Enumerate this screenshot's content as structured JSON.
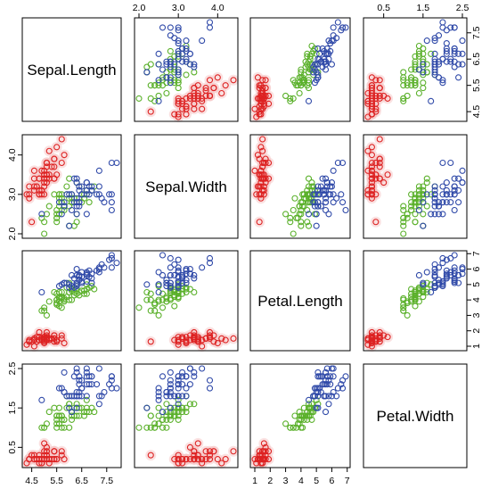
{
  "chart_data": {
    "type": "scatter",
    "subtype": "pairs-matrix",
    "variables": [
      "Sepal.Length",
      "Sepal.Width",
      "Petal.Length",
      "Petal.Width"
    ],
    "ranges": {
      "Sepal.Length": [
        4.3,
        7.9
      ],
      "Sepal.Width": [
        2.0,
        4.4
      ],
      "Petal.Length": [
        1.0,
        6.9
      ],
      "Petal.Width": [
        0.1,
        2.5
      ]
    },
    "ticks": {
      "Sepal.Length": [
        "4.5",
        "5.5",
        "6.5",
        "7.5"
      ],
      "Sepal.Width": [
        "2.0",
        "3.0",
        "4.0"
      ],
      "Petal.Length": [
        "1",
        "2",
        "3",
        "4",
        "5",
        "6",
        "7"
      ],
      "Petal.Width": [
        "0.5",
        "1.5",
        "2.5"
      ]
    },
    "groups": [
      {
        "color": "#dd2222",
        "halo": "#f6c9c9"
      },
      {
        "color": "#5ab02a",
        "halo": "none"
      },
      {
        "color": "#2f49a8",
        "halo": "none"
      }
    ],
    "points": [
      [
        [
          5.1,
          3.5,
          1.4,
          0.2
        ],
        [
          4.9,
          3.0,
          1.4,
          0.2
        ],
        [
          4.7,
          3.2,
          1.3,
          0.2
        ],
        [
          4.6,
          3.1,
          1.5,
          0.2
        ],
        [
          5.0,
          3.6,
          1.4,
          0.2
        ],
        [
          5.4,
          3.9,
          1.7,
          0.4
        ],
        [
          4.6,
          3.4,
          1.4,
          0.3
        ],
        [
          5.0,
          3.4,
          1.5,
          0.2
        ],
        [
          4.4,
          2.9,
          1.4,
          0.2
        ],
        [
          4.9,
          3.1,
          1.5,
          0.1
        ],
        [
          5.4,
          3.7,
          1.5,
          0.2
        ],
        [
          4.8,
          3.4,
          1.6,
          0.2
        ],
        [
          4.8,
          3.0,
          1.4,
          0.1
        ],
        [
          4.3,
          3.0,
          1.1,
          0.1
        ],
        [
          5.8,
          4.0,
          1.2,
          0.2
        ],
        [
          5.7,
          4.4,
          1.5,
          0.4
        ],
        [
          5.4,
          3.9,
          1.3,
          0.4
        ],
        [
          5.1,
          3.5,
          1.4,
          0.3
        ],
        [
          5.7,
          3.8,
          1.7,
          0.3
        ],
        [
          5.1,
          3.8,
          1.5,
          0.3
        ],
        [
          5.4,
          3.4,
          1.7,
          0.2
        ],
        [
          5.1,
          3.7,
          1.5,
          0.4
        ],
        [
          4.6,
          3.6,
          1.0,
          0.2
        ],
        [
          5.1,
          3.3,
          1.7,
          0.5
        ],
        [
          4.8,
          3.4,
          1.9,
          0.2
        ],
        [
          5.0,
          3.0,
          1.6,
          0.2
        ],
        [
          5.0,
          3.4,
          1.6,
          0.4
        ],
        [
          5.2,
          3.5,
          1.5,
          0.2
        ],
        [
          5.2,
          3.4,
          1.4,
          0.2
        ],
        [
          4.7,
          3.2,
          1.6,
          0.2
        ],
        [
          4.8,
          3.1,
          1.6,
          0.2
        ],
        [
          5.4,
          3.4,
          1.5,
          0.4
        ],
        [
          5.2,
          4.1,
          1.5,
          0.1
        ],
        [
          5.5,
          4.2,
          1.4,
          0.2
        ],
        [
          4.9,
          3.1,
          1.5,
          0.2
        ],
        [
          5.0,
          3.2,
          1.2,
          0.2
        ],
        [
          5.5,
          3.5,
          1.3,
          0.2
        ],
        [
          4.9,
          3.6,
          1.4,
          0.1
        ],
        [
          4.4,
          3.0,
          1.3,
          0.2
        ],
        [
          5.1,
          3.4,
          1.5,
          0.2
        ],
        [
          5.0,
          3.5,
          1.3,
          0.3
        ],
        [
          4.5,
          2.3,
          1.3,
          0.3
        ],
        [
          4.4,
          3.2,
          1.3,
          0.2
        ],
        [
          5.0,
          3.5,
          1.6,
          0.6
        ],
        [
          5.1,
          3.8,
          1.9,
          0.4
        ],
        [
          4.8,
          3.0,
          1.4,
          0.3
        ],
        [
          5.1,
          3.8,
          1.6,
          0.2
        ],
        [
          4.6,
          3.2,
          1.4,
          0.2
        ],
        [
          5.3,
          3.7,
          1.5,
          0.2
        ],
        [
          5.0,
          3.3,
          1.4,
          0.2
        ]
      ],
      [
        [
          7.0,
          3.2,
          4.7,
          1.4
        ],
        [
          6.4,
          3.2,
          4.5,
          1.5
        ],
        [
          6.9,
          3.1,
          4.9,
          1.5
        ],
        [
          5.5,
          2.3,
          4.0,
          1.3
        ],
        [
          6.5,
          2.8,
          4.6,
          1.5
        ],
        [
          5.7,
          2.8,
          4.5,
          1.3
        ],
        [
          6.3,
          3.3,
          4.7,
          1.6
        ],
        [
          4.9,
          2.4,
          3.3,
          1.0
        ],
        [
          6.6,
          2.9,
          4.6,
          1.3
        ],
        [
          5.2,
          2.7,
          3.9,
          1.4
        ],
        [
          5.0,
          2.0,
          3.5,
          1.0
        ],
        [
          5.9,
          3.0,
          4.2,
          1.5
        ],
        [
          6.0,
          2.2,
          4.0,
          1.0
        ],
        [
          6.1,
          2.9,
          4.7,
          1.4
        ],
        [
          5.6,
          2.9,
          3.6,
          1.3
        ],
        [
          6.7,
          3.1,
          4.4,
          1.4
        ],
        [
          5.6,
          3.0,
          4.5,
          1.5
        ],
        [
          5.8,
          2.7,
          4.1,
          1.0
        ],
        [
          6.2,
          2.2,
          4.5,
          1.5
        ],
        [
          5.6,
          2.5,
          3.9,
          1.1
        ],
        [
          5.9,
          3.2,
          4.8,
          1.8
        ],
        [
          6.1,
          2.8,
          4.0,
          1.3
        ],
        [
          6.3,
          2.5,
          4.9,
          1.5
        ],
        [
          6.1,
          2.8,
          4.7,
          1.2
        ],
        [
          6.4,
          2.9,
          4.3,
          1.3
        ],
        [
          6.6,
          3.0,
          4.4,
          1.4
        ],
        [
          6.8,
          2.8,
          4.8,
          1.4
        ],
        [
          6.7,
          3.0,
          5.0,
          1.7
        ],
        [
          6.0,
          2.9,
          4.5,
          1.5
        ],
        [
          5.7,
          2.6,
          3.5,
          1.0
        ],
        [
          5.5,
          2.4,
          3.8,
          1.1
        ],
        [
          5.5,
          2.4,
          3.7,
          1.0
        ],
        [
          5.8,
          2.7,
          3.9,
          1.2
        ],
        [
          6.0,
          2.7,
          5.1,
          1.6
        ],
        [
          5.4,
          3.0,
          4.5,
          1.5
        ],
        [
          6.0,
          3.4,
          4.5,
          1.6
        ],
        [
          6.7,
          3.1,
          4.7,
          1.5
        ],
        [
          6.3,
          2.3,
          4.4,
          1.3
        ],
        [
          5.6,
          3.0,
          4.1,
          1.3
        ],
        [
          5.5,
          2.5,
          4.0,
          1.3
        ],
        [
          5.5,
          2.6,
          4.4,
          1.2
        ],
        [
          6.1,
          3.0,
          4.6,
          1.4
        ],
        [
          5.8,
          2.6,
          4.0,
          1.2
        ],
        [
          5.0,
          2.3,
          3.3,
          1.0
        ],
        [
          5.6,
          2.7,
          4.2,
          1.3
        ],
        [
          5.7,
          3.0,
          4.2,
          1.2
        ],
        [
          5.7,
          2.9,
          4.2,
          1.3
        ],
        [
          6.2,
          2.9,
          4.3,
          1.3
        ],
        [
          5.1,
          2.5,
          3.0,
          1.1
        ],
        [
          5.7,
          2.8,
          4.1,
          1.3
        ]
      ],
      [
        [
          6.3,
          3.3,
          6.0,
          2.5
        ],
        [
          5.8,
          2.7,
          5.1,
          1.9
        ],
        [
          7.1,
          3.0,
          5.9,
          2.1
        ],
        [
          6.3,
          2.9,
          5.6,
          1.8
        ],
        [
          6.5,
          3.0,
          5.8,
          2.2
        ],
        [
          7.6,
          3.0,
          6.6,
          2.1
        ],
        [
          4.9,
          2.5,
          4.5,
          1.7
        ],
        [
          7.3,
          2.9,
          6.3,
          1.8
        ],
        [
          6.7,
          2.5,
          5.8,
          1.8
        ],
        [
          7.2,
          3.6,
          6.1,
          2.5
        ],
        [
          6.5,
          3.2,
          5.1,
          2.0
        ],
        [
          6.4,
          2.7,
          5.3,
          1.9
        ],
        [
          6.8,
          3.0,
          5.5,
          2.1
        ],
        [
          5.7,
          2.5,
          5.0,
          2.0
        ],
        [
          5.8,
          2.8,
          5.1,
          2.4
        ],
        [
          6.4,
          3.2,
          5.3,
          2.3
        ],
        [
          6.5,
          3.0,
          5.5,
          1.8
        ],
        [
          7.7,
          3.8,
          6.7,
          2.2
        ],
        [
          7.7,
          2.6,
          6.9,
          2.3
        ],
        [
          6.0,
          2.2,
          5.0,
          1.5
        ],
        [
          6.9,
          3.2,
          5.7,
          2.3
        ],
        [
          5.6,
          2.8,
          4.9,
          2.0
        ],
        [
          7.7,
          2.8,
          6.7,
          2.0
        ],
        [
          6.3,
          2.7,
          4.9,
          1.8
        ],
        [
          6.7,
          3.3,
          5.7,
          2.1
        ],
        [
          7.2,
          3.2,
          6.0,
          1.8
        ],
        [
          6.2,
          2.8,
          4.8,
          1.8
        ],
        [
          6.1,
          3.0,
          4.9,
          1.8
        ],
        [
          6.4,
          2.8,
          5.6,
          2.1
        ],
        [
          7.2,
          3.0,
          5.8,
          1.6
        ],
        [
          7.4,
          2.8,
          6.1,
          1.9
        ],
        [
          7.9,
          3.8,
          6.4,
          2.0
        ],
        [
          6.4,
          2.8,
          5.6,
          2.2
        ],
        [
          6.3,
          2.8,
          5.1,
          1.5
        ],
        [
          6.1,
          2.6,
          5.6,
          1.4
        ],
        [
          7.7,
          3.0,
          6.1,
          2.3
        ],
        [
          6.3,
          3.4,
          5.6,
          2.4
        ],
        [
          6.4,
          3.1,
          5.5,
          1.8
        ],
        [
          6.0,
          3.0,
          4.8,
          1.8
        ],
        [
          6.9,
          3.1,
          5.4,
          2.1
        ],
        [
          6.7,
          3.1,
          5.6,
          2.4
        ],
        [
          6.9,
          3.1,
          5.1,
          2.3
        ],
        [
          5.8,
          2.7,
          5.1,
          1.9
        ],
        [
          6.8,
          3.2,
          5.9,
          2.3
        ],
        [
          6.7,
          3.3,
          5.7,
          2.5
        ],
        [
          6.7,
          3.0,
          5.2,
          2.3
        ],
        [
          6.3,
          2.5,
          5.0,
          1.9
        ],
        [
          6.5,
          3.0,
          5.2,
          2.0
        ],
        [
          6.2,
          3.4,
          5.4,
          2.3
        ],
        [
          5.9,
          3.0,
          5.1,
          1.8
        ]
      ]
    ]
  }
}
